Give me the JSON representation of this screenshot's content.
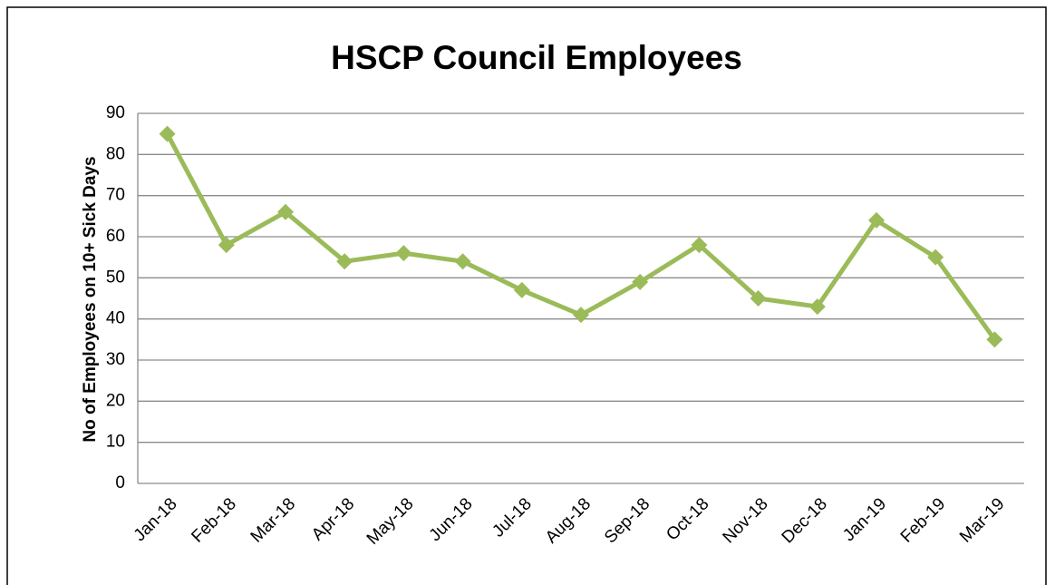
{
  "chart_data": {
    "type": "line",
    "title": "HSCP Council Employees",
    "y_label": "No of Employees on 10+ Sick Days",
    "categories": [
      "Jan-18",
      "Feb-18",
      "Mar-18",
      "Apr-18",
      "May-18",
      "Jun-18",
      "Jul-18",
      "Aug-18",
      "Sep-18",
      "Oct-18",
      "Nov-18",
      "Dec-18",
      "Jan-19",
      "Feb-19",
      "Mar-19"
    ],
    "values": [
      85,
      58,
      66,
      54,
      56,
      54,
      47,
      41,
      49,
      58,
      45,
      43,
      64,
      55,
      35
    ],
    "color": "#9bbb59",
    "ylim": [
      0,
      90
    ],
    "yticks": [
      0,
      10,
      20,
      30,
      40,
      50,
      60,
      70,
      80,
      90
    ],
    "grid": true
  }
}
